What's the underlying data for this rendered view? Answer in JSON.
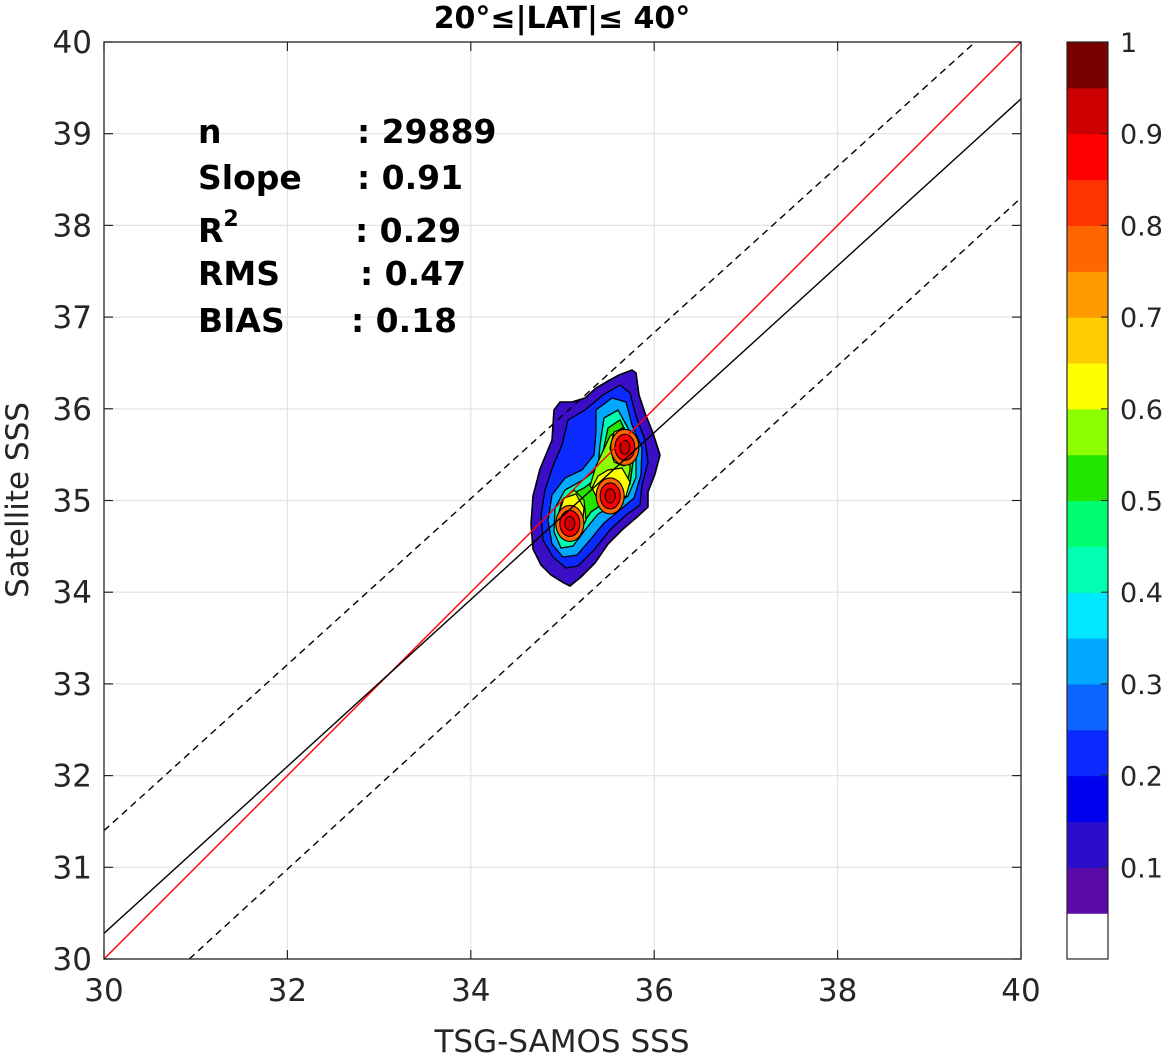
{
  "chart_data": {
    "type": "contour",
    "title": "20°≤|LAT|≤ 40°",
    "xlabel": "TSG-SAMOS SSS",
    "ylabel": "Satellite SSS",
    "xlim": [
      30,
      40
    ],
    "ylim": [
      30,
      40
    ],
    "x_ticks": [
      "30",
      "32",
      "34",
      "36",
      "38",
      "40"
    ],
    "y_ticks": [
      "30",
      "31",
      "32",
      "33",
      "34",
      "35",
      "36",
      "37",
      "38",
      "39",
      "40"
    ],
    "grid": true,
    "stats": {
      "n_label": "n",
      "n_value": ": 29889",
      "slope_label": "Slope",
      "slope_value": ": 0.91",
      "r2_label": "R",
      "r2_sup": "2",
      "r2_value": ": 0.29",
      "rms_label": "RMS",
      "rms_value": ": 0.47",
      "bias_label": "BIAS",
      "bias_value": ": 0.18"
    },
    "lines": [
      {
        "role": "one-to-one",
        "color": "#ff0000",
        "style": "solid",
        "slope": 1.0,
        "intercept": 0.0
      },
      {
        "role": "regression",
        "color": "#000000",
        "style": "solid",
        "points": [
          [
            30,
            30.28
          ],
          [
            40,
            39.38
          ]
        ]
      },
      {
        "role": "upper-bound",
        "color": "#000000",
        "style": "dashed",
        "points": [
          [
            30,
            31.4
          ],
          [
            39.5,
            40.0
          ]
        ]
      },
      {
        "role": "lower-bound",
        "color": "#000000",
        "style": "dashed",
        "points": [
          [
            30.93,
            30.0
          ],
          [
            40,
            38.3
          ]
        ]
      }
    ],
    "density_peaks": [
      {
        "x": 35.08,
        "y": 34.75,
        "value": 0.95
      },
      {
        "x": 35.52,
        "y": 35.05,
        "value": 0.9
      },
      {
        "x": 35.68,
        "y": 35.58,
        "value": 0.95
      }
    ],
    "colorbar": {
      "range": [
        0,
        1
      ],
      "tick_labels": [
        "0.1",
        "0.2",
        "0.3",
        "0.4",
        "0.5",
        "0.6",
        "0.7",
        "0.8",
        "0.9",
        "1"
      ],
      "colors": [
        "#ffffff",
        "#5a0aa8",
        "#2a0ccc",
        "#0000ee",
        "#0a2aff",
        "#0a66ff",
        "#00a8ff",
        "#00e8ff",
        "#00ffb0",
        "#00ff70",
        "#22e600",
        "#8cff00",
        "#ffff00",
        "#ffcc00",
        "#ff9a00",
        "#ff6600",
        "#ff3300",
        "#ff0000",
        "#cc0000",
        "#7a0000"
      ]
    }
  }
}
